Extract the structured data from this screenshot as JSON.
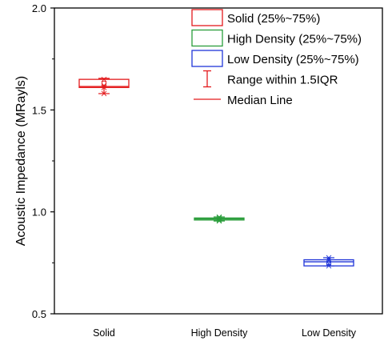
{
  "chart_data": {
    "type": "box",
    "title": "",
    "xlabel": "",
    "ylabel": "Acoustic Impedance (MRayls)",
    "ylim": [
      0.5,
      2.0
    ],
    "yticks": [
      "0.5",
      "1.0",
      "1.5",
      "2.0"
    ],
    "yticks_values": [
      0.5,
      1.0,
      1.5,
      2.0
    ],
    "categories": [
      "Solid",
      "High Density",
      "Low Density"
    ],
    "series": [
      {
        "name": "Solid (25%~75%)",
        "category": "Solid",
        "color": "#e31a1c",
        "q1": 1.61,
        "median": 1.615,
        "q3": 1.65,
        "whisker_low": 1.58,
        "whisker_high": 1.655,
        "mean": 1.63,
        "points": [
          1.58,
          1.61,
          1.62,
          1.65
        ]
      },
      {
        "name": "High Density (25%~75%)",
        "category": "High Density",
        "color": "#2a9d3b",
        "q1": 0.96,
        "median": 0.965,
        "q3": 0.97,
        "whisker_low": 0.955,
        "whisker_high": 0.975,
        "mean": 0.965,
        "points": [
          0.955,
          0.96,
          0.97,
          0.975
        ]
      },
      {
        "name": "Low Density (25%~75%)",
        "category": "Low Density",
        "color": "#2035d8",
        "q1": 0.735,
        "median": 0.755,
        "q3": 0.765,
        "whisker_low": 0.735,
        "whisker_high": 0.775,
        "mean": 0.75,
        "points": [
          0.735,
          0.745,
          0.765,
          0.775
        ]
      }
    ],
    "legend": {
      "placement": "top-right",
      "entries": [
        "Solid (25%~75%)",
        "High Density (25%~75%)",
        "Low Density (25%~75%)",
        "Range within 1.5IQR",
        "Median Line"
      ]
    },
    "grid": false
  }
}
